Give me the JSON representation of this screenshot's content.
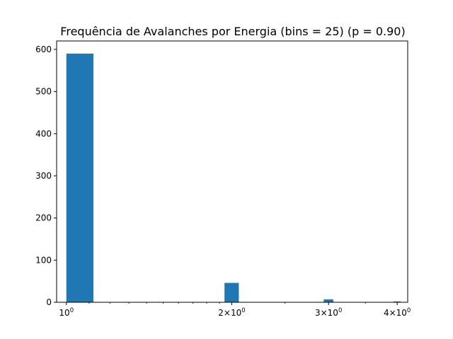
{
  "chart_data": {
    "type": "bar",
    "title": "Frequência de Avalanches por Energia (bins = 25) (p = 0.90)",
    "xlabel": "",
    "ylabel": "",
    "x_scale": "log",
    "xlim": [
      0.96,
      4.18
    ],
    "ylim": [
      0,
      620
    ],
    "bar_color": "#1f77b4",
    "grid": false,
    "bins": [
      {
        "x_start": 1.0,
        "x_end": 1.12,
        "count": 590
      },
      {
        "x_start": 1.94,
        "x_end": 2.06,
        "count": 46
      },
      {
        "x_start": 2.94,
        "x_end": 3.06,
        "count": 7
      },
      {
        "x_start": 3.94,
        "x_end": 4.06,
        "count": 2
      }
    ],
    "y_ticks": [
      0,
      100,
      200,
      300,
      400,
      500,
      600
    ],
    "x_ticks": [
      {
        "value": 1,
        "base": "10",
        "exp": "0"
      },
      {
        "value": 2,
        "base": "2×10",
        "exp": "0"
      },
      {
        "value": 3,
        "base": "3×10",
        "exp": "0"
      },
      {
        "value": 4,
        "base": "4×10",
        "exp": "0"
      }
    ]
  }
}
